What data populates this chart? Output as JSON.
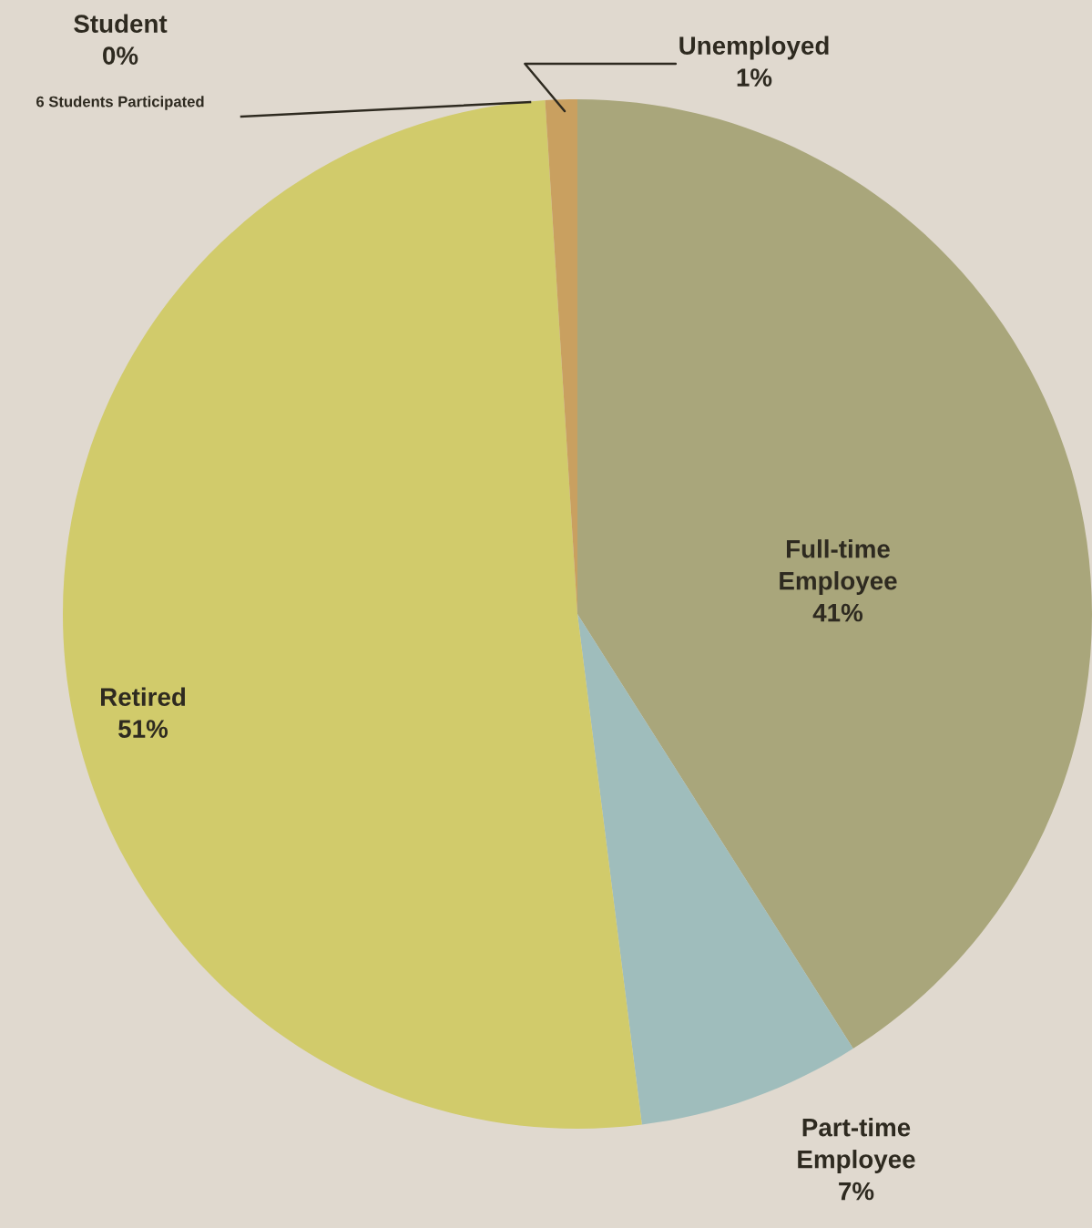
{
  "chart_data": {
    "type": "pie",
    "categories": [
      "Full-time Employee",
      "Part-time Employee",
      "Retired",
      "Student",
      "Unemployed"
    ],
    "values": [
      41,
      7,
      51,
      0,
      1
    ],
    "value_labels": [
      "41%",
      "7%",
      "51%",
      "0%",
      "1%"
    ],
    "colors": [
      "#a9a67b",
      "#9fbdbc",
      "#d1cb6b",
      "#9aa59a",
      "#c9a060"
    ],
    "annotations": [
      "6 Students Participated"
    ]
  }
}
